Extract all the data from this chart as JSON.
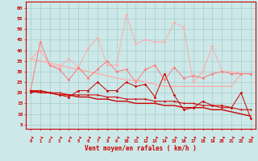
{
  "x": [
    0,
    1,
    2,
    3,
    4,
    5,
    6,
    7,
    8,
    9,
    10,
    11,
    12,
    13,
    14,
    15,
    16,
    17,
    18,
    19,
    20,
    21,
    22,
    23
  ],
  "series_light1": [
    36,
    40,
    33,
    32,
    36,
    32,
    41,
    46,
    33,
    33,
    57,
    43,
    45,
    44,
    44,
    53,
    51,
    25,
    30,
    42,
    30,
    30,
    29,
    29
  ],
  "series_light2": [
    21,
    44,
    33,
    31,
    26,
    32,
    27,
    31,
    35,
    30,
    31,
    25,
    31,
    33,
    26,
    32,
    27,
    28,
    27,
    29,
    30,
    29,
    29,
    29
  ],
  "series_dark1": [
    21,
    21,
    20,
    19,
    18,
    21,
    21,
    25,
    21,
    21,
    25,
    23,
    24,
    18,
    29,
    19,
    12,
    13,
    16,
    14,
    14,
    13,
    20,
    8
  ],
  "series_dark2": [
    20,
    21,
    20,
    20,
    19,
    19,
    19,
    19,
    18,
    18,
    17,
    17,
    17,
    16,
    16,
    16,
    15,
    15,
    14,
    14,
    13,
    13,
    12,
    12
  ],
  "trend_light": [
    36,
    35,
    34,
    33,
    32,
    31,
    30,
    29,
    28,
    27,
    26,
    26,
    25,
    24,
    23,
    23,
    23,
    23,
    23,
    23,
    23,
    23,
    29,
    29
  ],
  "trend_dark": [
    21,
    20,
    20,
    19,
    19,
    18,
    18,
    17,
    17,
    16,
    16,
    15,
    15,
    15,
    14,
    14,
    13,
    13,
    13,
    12,
    12,
    11,
    10,
    9
  ],
  "background_color": "#cce8e8",
  "grid_color": "#aacccc",
  "light_pink": "#ffaaaa",
  "medium_pink": "#ff7777",
  "dark_red": "#cc0000",
  "xlabel": "Vent moyen/en rafales ( km/h )",
  "xlabel_color": "#cc0000",
  "yticks": [
    5,
    10,
    15,
    20,
    25,
    30,
    35,
    40,
    45,
    50,
    55,
    60
  ],
  "ylim": [
    3,
    63
  ],
  "xlim": [
    -0.5,
    23.5
  ],
  "tick_color": "#cc0000",
  "axis_color": "#cc0000",
  "arrow_color": "#cc0000"
}
